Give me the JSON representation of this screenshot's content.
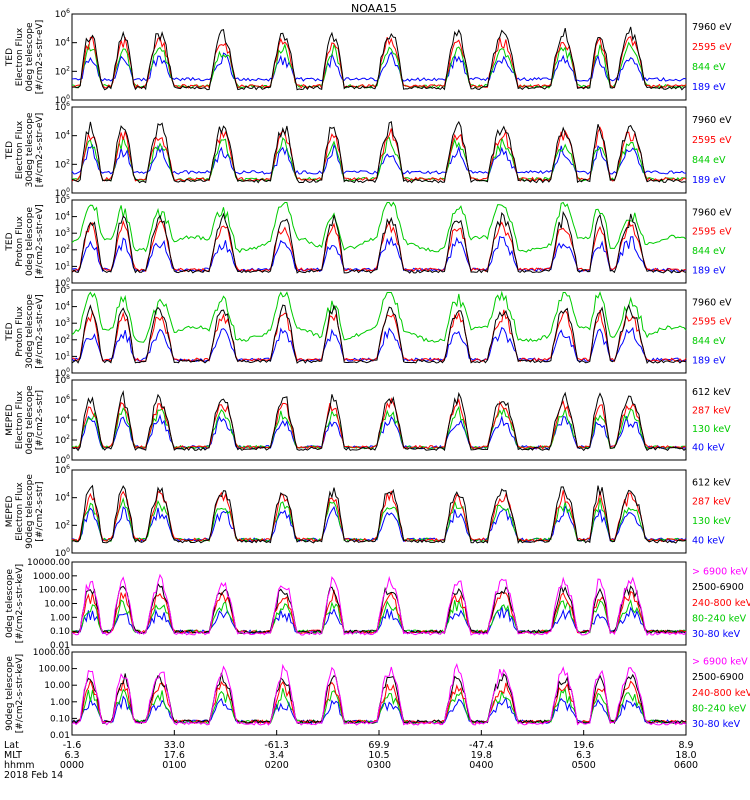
{
  "title": "NOAA15",
  "chart_data": [
    {
      "type": "line",
      "scale": "log",
      "ylim_exp": [
        0,
        6
      ],
      "ylabel": [
        "TED",
        "Electron Flux",
        "0deg telescope",
        "[#/cm2-s-str-eV]"
      ],
      "legend": [
        {
          "label": "7960 eV",
          "color": "#000000"
        },
        {
          "label": "2595 eV",
          "color": "#ff0000"
        },
        {
          "label": "844 eV",
          "color": "#00cc00"
        },
        {
          "label": "189 eV",
          "color": "#0000ff"
        }
      ]
    },
    {
      "type": "line",
      "scale": "log",
      "ylim_exp": [
        0,
        6
      ],
      "ylabel": [
        "TED",
        "Electron Flux",
        "30deg telescope",
        "[#/cm2-s-str-eV]"
      ],
      "legend": [
        {
          "label": "7960 eV",
          "color": "#000000"
        },
        {
          "label": "2595 eV",
          "color": "#ff0000"
        },
        {
          "label": "844 eV",
          "color": "#00cc00"
        },
        {
          "label": "189 eV",
          "color": "#0000ff"
        }
      ]
    },
    {
      "type": "line",
      "scale": "log",
      "ylim_exp": [
        0,
        5
      ],
      "ylabel": [
        "TED",
        "Proton Flux",
        "0deg telescope",
        "[#/cm2-s-str-eV]"
      ],
      "legend": [
        {
          "label": "7960 eV",
          "color": "#000000"
        },
        {
          "label": "2595 eV",
          "color": "#ff0000"
        },
        {
          "label": "844 eV",
          "color": "#00cc00"
        },
        {
          "label": "189 eV",
          "color": "#0000ff"
        }
      ]
    },
    {
      "type": "line",
      "scale": "log",
      "ylim_exp": [
        0,
        5
      ],
      "ylabel": [
        "TED",
        "Proton Flux",
        "30deg telescope",
        "[#/cm2-s-str-eV]"
      ],
      "legend": [
        {
          "label": "7960 eV",
          "color": "#000000"
        },
        {
          "label": "2595 eV",
          "color": "#ff0000"
        },
        {
          "label": "844 eV",
          "color": "#00cc00"
        },
        {
          "label": "189 eV",
          "color": "#0000ff"
        }
      ]
    },
    {
      "type": "line",
      "scale": "log",
      "ylim_exp": [
        0,
        8
      ],
      "ylabel": [
        "MEPED",
        "Electron Flux",
        "0deg telescope",
        "[#/cm2-s-str]"
      ],
      "legend": [
        {
          "label": "612 keV",
          "color": "#000000"
        },
        {
          "label": "287 keV",
          "color": "#ff0000"
        },
        {
          "label": "130 keV",
          "color": "#00cc00"
        },
        {
          "label": "40 keV",
          "color": "#0000ff"
        }
      ]
    },
    {
      "type": "line",
      "scale": "log",
      "ylim_exp": [
        0,
        6
      ],
      "ylabel": [
        "MEPED",
        "Electron Flux",
        "90deg telescope",
        "[#/cm2-s-str]"
      ],
      "legend": [
        {
          "label": "612 keV",
          "color": "#000000"
        },
        {
          "label": "287 keV",
          "color": "#ff0000"
        },
        {
          "label": "130 keV",
          "color": "#00cc00"
        },
        {
          "label": "40 keV",
          "color": "#0000ff"
        }
      ]
    },
    {
      "type": "line",
      "scale": "log",
      "yticks": [
        "10000.00",
        "1000.00",
        "100.00",
        "10.00",
        "1.00",
        "0.10",
        "0.01"
      ],
      "ylabel": [
        "0deg telescope",
        "[#/cm2-s-str-keV]"
      ],
      "legend": [
        {
          "label": "> 6900 keV",
          "color": "#ff00ff"
        },
        {
          "label": "2500-6900",
          "color": "#000000"
        },
        {
          "label": "240-800 keV",
          "color": "#ff0000"
        },
        {
          "label": "80-240 keV",
          "color": "#00cc00"
        },
        {
          "label": "30-80 keV",
          "color": "#0000ff"
        }
      ]
    },
    {
      "type": "line",
      "scale": "log",
      "yticks": [
        "1000.00",
        "100.00",
        "10.00",
        "1.00",
        "0.10",
        "0.01"
      ],
      "ylabel": [
        "90deg telescope",
        "[#/cm2-s-str-keV]"
      ],
      "legend": [
        {
          "label": "> 6900 keV",
          "color": "#ff00ff"
        },
        {
          "label": "2500-6900",
          "color": "#000000"
        },
        {
          "label": "240-800 keV",
          "color": "#ff0000"
        },
        {
          "label": "80-240 keV",
          "color": "#00cc00"
        },
        {
          "label": "30-80 keV",
          "color": "#0000ff"
        }
      ]
    }
  ],
  "x_axis": {
    "row_labels": [
      "Lat",
      "MLT",
      "hhmm",
      "2018 Feb 14"
    ],
    "lat": [
      "-1.6",
      "33.0",
      "-61.3",
      "69.9",
      "-47.4",
      "19.6",
      "8.9"
    ],
    "mlt": [
      "6.3",
      "17.6",
      "3.4",
      "10.5",
      "19.8",
      "6.3",
      "18.0"
    ],
    "hhmm": [
      "0000",
      "0100",
      "0200",
      "0300",
      "0400",
      "0500",
      "0600"
    ]
  },
  "activity_windows_hhmm": [
    [
      "0006",
      "0016"
    ],
    [
      "0025",
      "0035"
    ],
    [
      "0045",
      "0058"
    ],
    [
      "0122",
      "0135"
    ],
    [
      "0158",
      "0210"
    ],
    [
      "0228",
      "0238"
    ],
    [
      "0300",
      "0313"
    ],
    [
      "0340",
      "0352"
    ],
    [
      "0405",
      "0420"
    ],
    [
      "0442",
      "0455"
    ],
    [
      "0505",
      "0514"
    ],
    [
      "0520",
      "0535"
    ]
  ]
}
